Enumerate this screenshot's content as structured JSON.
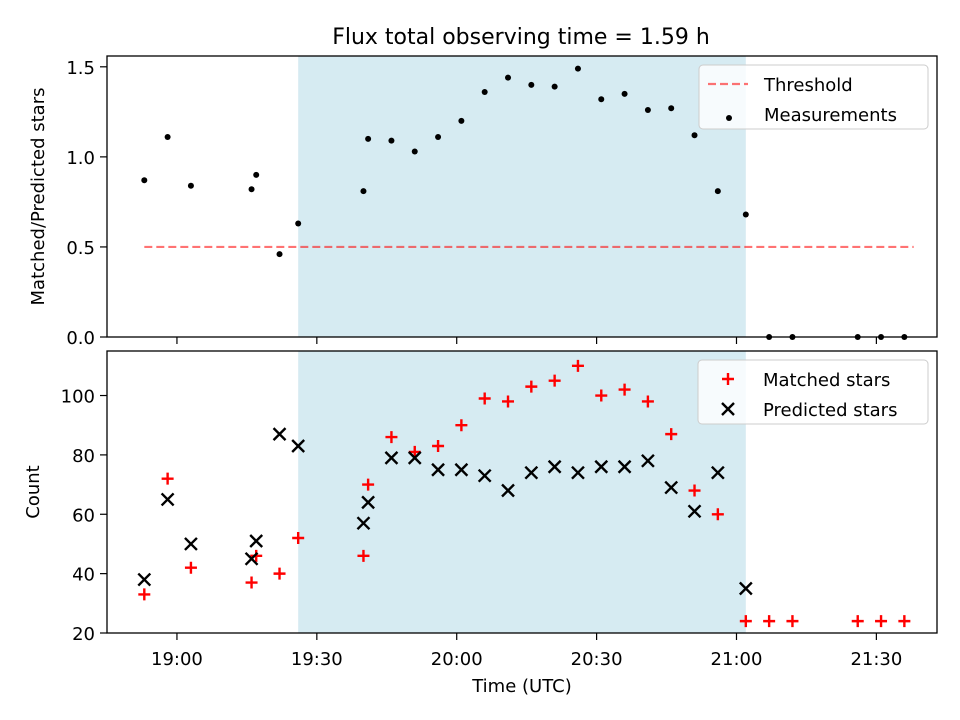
{
  "title": "Flux total observing time = 1.59 h",
  "colors": {
    "shade": "#add8e6",
    "threshold": "#ff0000",
    "measurement": "#000000",
    "matched": "#ff0000",
    "predicted": "#000000"
  },
  "chart_data": [
    {
      "type": "scatter",
      "title": "Flux total observing time = 1.59 h",
      "ylabel": "Matched/Predicted stars",
      "xlabel": "",
      "xlim": [
        "18:45",
        "21:43"
      ],
      "ylim": [
        0,
        1.56
      ],
      "yticks": [
        0.0,
        0.5,
        1.0,
        1.5
      ],
      "ytick_labels": [
        "0.0",
        "0.5",
        "1.0",
        "1.5"
      ],
      "shaded_interval": [
        "19:26",
        "21:02"
      ],
      "legend_position": "top-right",
      "series": [
        {
          "name": "Threshold",
          "kind": "line",
          "style": "dashed",
          "color": "#ff0000",
          "points": [
            [
              "18:53",
              0.5
            ],
            [
              "21:38",
              0.5
            ]
          ]
        },
        {
          "name": "Measurements",
          "kind": "scatter",
          "marker": "dot",
          "color": "#000000",
          "points": [
            [
              "18:53",
              0.87
            ],
            [
              "18:58",
              1.11
            ],
            [
              "19:03",
              0.84
            ],
            [
              "19:16",
              0.82
            ],
            [
              "19:17",
              0.9
            ],
            [
              "19:22",
              0.46
            ],
            [
              "19:26",
              0.63
            ],
            [
              "19:40",
              0.81
            ],
            [
              "19:41",
              1.1
            ],
            [
              "19:46",
              1.09
            ],
            [
              "19:51",
              1.03
            ],
            [
              "19:56",
              1.11
            ],
            [
              "20:01",
              1.2
            ],
            [
              "20:06",
              1.36
            ],
            [
              "20:11",
              1.44
            ],
            [
              "20:16",
              1.4
            ],
            [
              "20:21",
              1.39
            ],
            [
              "20:26",
              1.49
            ],
            [
              "20:31",
              1.32
            ],
            [
              "20:36",
              1.35
            ],
            [
              "20:41",
              1.26
            ],
            [
              "20:46",
              1.27
            ],
            [
              "20:51",
              1.12
            ],
            [
              "20:56",
              0.81
            ],
            [
              "21:02",
              0.68
            ],
            [
              "21:07",
              0.0
            ],
            [
              "21:12",
              0.0
            ],
            [
              "21:26",
              0.0
            ],
            [
              "21:31",
              0.0
            ],
            [
              "21:36",
              0.0
            ]
          ]
        }
      ]
    },
    {
      "type": "scatter",
      "title": "",
      "ylabel": "Count",
      "xlabel": "Time (UTC)",
      "xlim": [
        "18:45",
        "21:43"
      ],
      "ylim": [
        20,
        115
      ],
      "yticks": [
        20,
        40,
        60,
        80,
        100
      ],
      "ytick_labels": [
        "20",
        "40",
        "60",
        "80",
        "100"
      ],
      "xticks": [
        "19:00",
        "19:30",
        "20:00",
        "20:30",
        "21:00",
        "21:30"
      ],
      "xtick_labels": [
        "19:00",
        "19:30",
        "20:00",
        "20:30",
        "21:00",
        "21:30"
      ],
      "shaded_interval": [
        "19:26",
        "21:02"
      ],
      "legend_position": "top-right",
      "series": [
        {
          "name": "Matched stars",
          "kind": "scatter",
          "marker": "plus",
          "color": "#ff0000",
          "points": [
            [
              "18:53",
              33
            ],
            [
              "18:58",
              72
            ],
            [
              "19:03",
              42
            ],
            [
              "19:16",
              37
            ],
            [
              "19:17",
              46
            ],
            [
              "19:22",
              40
            ],
            [
              "19:26",
              52
            ],
            [
              "19:40",
              46
            ],
            [
              "19:41",
              70
            ],
            [
              "19:46",
              86
            ],
            [
              "19:51",
              81
            ],
            [
              "19:56",
              83
            ],
            [
              "20:01",
              90
            ],
            [
              "20:06",
              99
            ],
            [
              "20:11",
              98
            ],
            [
              "20:16",
              103
            ],
            [
              "20:21",
              105
            ],
            [
              "20:26",
              110
            ],
            [
              "20:31",
              100
            ],
            [
              "20:36",
              102
            ],
            [
              "20:41",
              98
            ],
            [
              "20:46",
              87
            ],
            [
              "20:51",
              68
            ],
            [
              "20:56",
              60
            ],
            [
              "21:02",
              24
            ],
            [
              "21:07",
              24
            ],
            [
              "21:12",
              24
            ],
            [
              "21:26",
              24
            ],
            [
              "21:31",
              24
            ],
            [
              "21:36",
              24
            ]
          ]
        },
        {
          "name": "Predicted stars",
          "kind": "scatter",
          "marker": "x",
          "color": "#000000",
          "points": [
            [
              "18:53",
              38
            ],
            [
              "18:58",
              65
            ],
            [
              "19:03",
              50
            ],
            [
              "19:16",
              45
            ],
            [
              "19:17",
              51
            ],
            [
              "19:22",
              87
            ],
            [
              "19:26",
              83
            ],
            [
              "19:40",
              57
            ],
            [
              "19:41",
              64
            ],
            [
              "19:46",
              79
            ],
            [
              "19:51",
              79
            ],
            [
              "19:56",
              75
            ],
            [
              "20:01",
              75
            ],
            [
              "20:06",
              73
            ],
            [
              "20:11",
              68
            ],
            [
              "20:16",
              74
            ],
            [
              "20:21",
              76
            ],
            [
              "20:26",
              74
            ],
            [
              "20:31",
              76
            ],
            [
              "20:36",
              76
            ],
            [
              "20:41",
              78
            ],
            [
              "20:46",
              69
            ],
            [
              "20:51",
              61
            ],
            [
              "20:56",
              74
            ],
            [
              "21:02",
              35
            ]
          ]
        }
      ]
    }
  ]
}
